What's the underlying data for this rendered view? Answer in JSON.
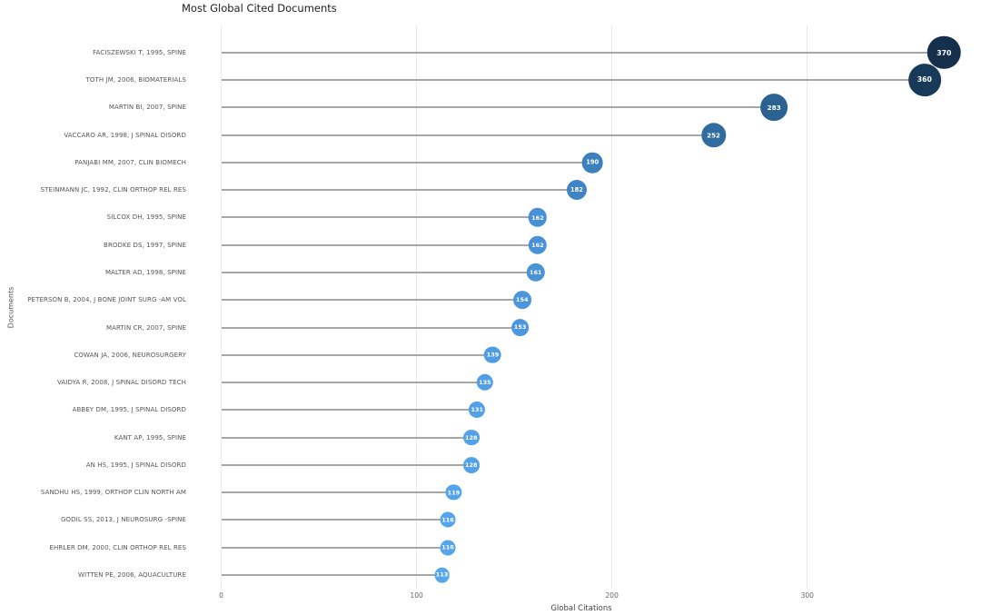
{
  "chart_data": {
    "type": "bar",
    "variant": "horizontal-lollipop",
    "title": "Most Global Cited Documents",
    "xlabel": "Global Citations",
    "ylabel": "Documents",
    "xlim": [
      0,
      387
    ],
    "x_ticks": [
      "0",
      "100",
      "200",
      "300"
    ],
    "x_tick_values": [
      0,
      100,
      200,
      300
    ],
    "grid": "vertical-only",
    "legend": "none",
    "categories": [
      "FACISZEWSKI T, 1995, SPINE",
      "TOTH JM, 2006, BIOMATERIALS",
      "MARTIN BI, 2007, SPINE",
      "VACCARO AR, 1998, J SPINAL DISORD",
      "PANJABI MM, 2007, CLIN BIOMECH",
      "STEINMANN JC, 1992, CLIN ORTHOP REL RES",
      "SILCOX DH, 1995, SPINE",
      "BRODKE DS, 1997, SPINE",
      "MALTER AD, 1998, SPINE",
      "PETERSON B, 2004, J BONE JOINT SURG -AM VOL",
      "MARTIN CR, 2007, SPINE",
      "COWAN JA, 2006, NEUROSURGERY",
      "VAIDYA R, 2008, J SPINAL DISORD TECH",
      "ABBEY DM, 1995, J SPINAL DISORD",
      "KANT AP, 1995, SPINE",
      "AN HS, 1995, J SPINAL DISORD",
      "SANDHU HS, 1999, ORTHOP CLIN NORTH AM",
      "GODIL SS, 2013, J NEUROSURG -SPINE",
      "EHRLER DM, 2000, CLIN ORTHOP REL RES",
      "WITTEN PE, 2006, AQUACULTURE"
    ],
    "values": [
      370,
      360,
      283,
      252,
      190,
      182,
      162,
      162,
      161,
      154,
      153,
      139,
      135,
      131,
      128,
      128,
      119,
      116,
      116,
      113
    ],
    "colors": [
      "#14304c",
      "#173a59",
      "#2b6292",
      "#306c9f",
      "#3d80be",
      "#3f84c3",
      "#4991d6",
      "#4991d6",
      "#4992d7",
      "#4c96db",
      "#4c96dc",
      "#509ce2",
      "#519ee4",
      "#52a0e6",
      "#53a1e7",
      "#53a1e7",
      "#55a4ea",
      "#56a5eb",
      "#56a5eb",
      "#56a6ec"
    ],
    "marker_text_color": "#ffffff",
    "stem_color": "#a6a6a6",
    "gridline_color": "#e8e8e8",
    "label_color": "#555555",
    "tick_color": "#666666",
    "title_color": "#202020"
  }
}
